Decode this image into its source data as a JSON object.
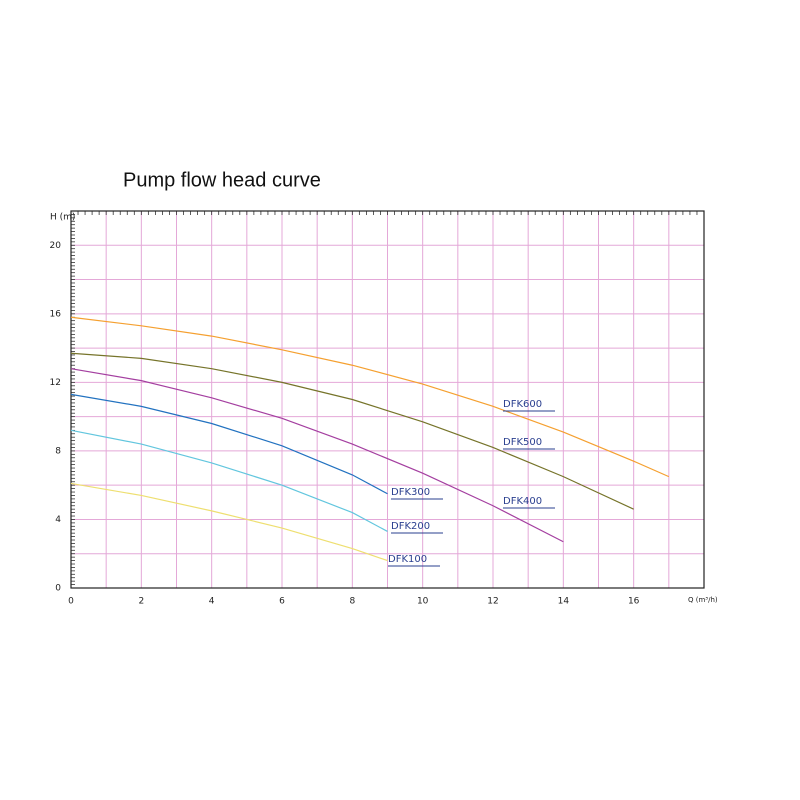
{
  "chart_data": {
    "type": "line",
    "title": "Pump flow head curve",
    "x_label": "Q (m³/h)",
    "y_label": "H (m)",
    "xlim": [
      0,
      18
    ],
    "ylim": [
      0,
      22
    ],
    "xticks": [
      0,
      2,
      4,
      6,
      8,
      10,
      12,
      14,
      16
    ],
    "yticks": [
      0,
      4,
      8,
      12,
      16,
      20
    ],
    "grid": true,
    "series": [
      {
        "name": "DFK600",
        "color": "#f5a030",
        "x": [
          0,
          2,
          4,
          6,
          8,
          10,
          12,
          14,
          16,
          17
        ],
        "values": [
          15.8,
          15.3,
          14.7,
          13.9,
          13.0,
          11.9,
          10.6,
          9.1,
          7.4,
          6.5
        ]
      },
      {
        "name": "DFK500",
        "color": "#76742a",
        "x": [
          0,
          2,
          4,
          6,
          8,
          10,
          12,
          14,
          16
        ],
        "values": [
          13.7,
          13.4,
          12.8,
          12.0,
          11.0,
          9.7,
          8.2,
          6.5,
          4.6
        ]
      },
      {
        "name": "DFK400",
        "color": "#a43fa0",
        "x": [
          0,
          2,
          4,
          6,
          8,
          10,
          12,
          14
        ],
        "values": [
          12.8,
          12.1,
          11.1,
          9.9,
          8.4,
          6.7,
          4.8,
          2.7
        ]
      },
      {
        "name": "DFK300",
        "color": "#2272c0",
        "x": [
          0,
          2,
          4,
          6,
          8,
          9
        ],
        "values": [
          11.3,
          10.6,
          9.6,
          8.3,
          6.6,
          5.5
        ]
      },
      {
        "name": "DFK200",
        "color": "#62c6de",
        "x": [
          0,
          2,
          4,
          6,
          8,
          9
        ],
        "values": [
          9.2,
          8.4,
          7.3,
          6.0,
          4.4,
          3.3
        ]
      },
      {
        "name": "DFK100",
        "color": "#eedf70",
        "x": [
          0,
          2,
          4,
          6,
          8,
          9
        ],
        "values": [
          6.1,
          5.4,
          4.5,
          3.5,
          2.3,
          1.6
        ]
      }
    ]
  }
}
